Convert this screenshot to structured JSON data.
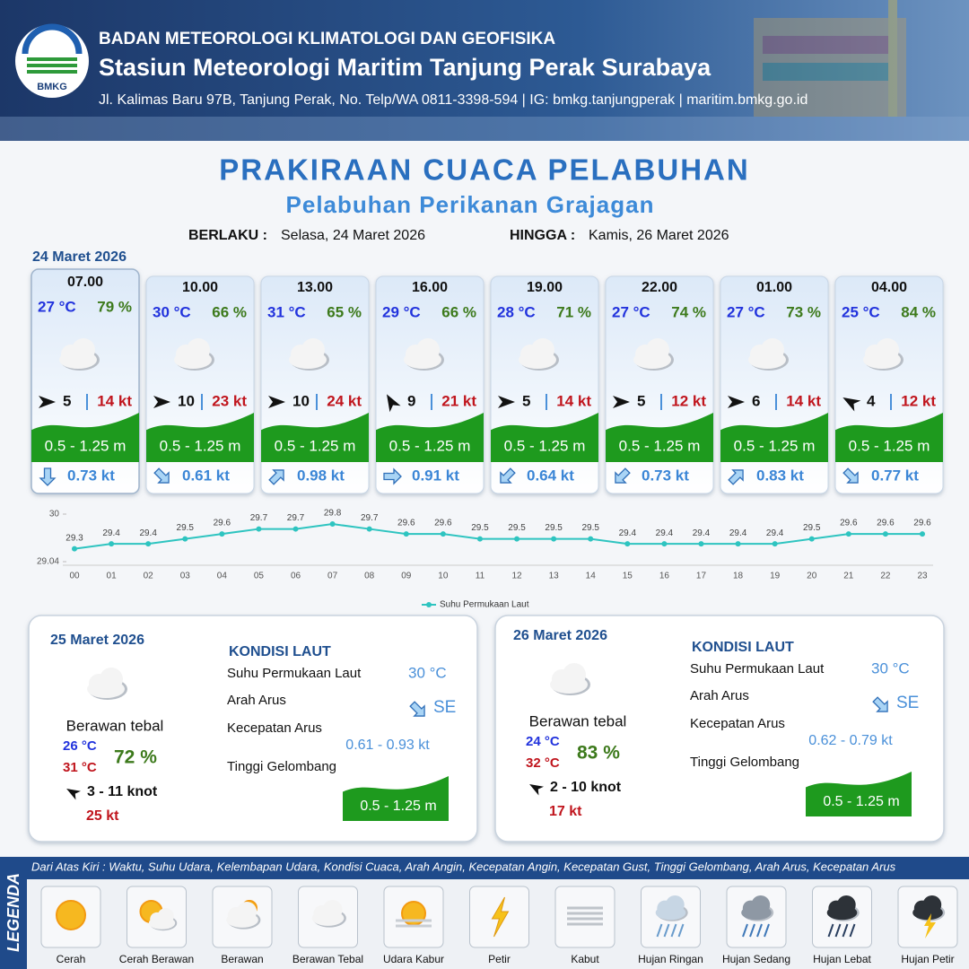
{
  "header": {
    "logo_text": "BMKG",
    "organization": "BADAN METEOROLOGI KLIMATOLOGI DAN GEOFISIKA",
    "station": "Stasiun Meteorologi Maritim Tanjung Perak Surabaya",
    "address": "Jl. Kalimas Baru 97B, Tanjung Perak, No. Telp/WA 0811-3398-594 | IG: bmkg.tanjungperak | maritim.bmkg.go.id"
  },
  "title": "PRAKIRAAN CUACA PELABUHAN",
  "subtitle": "Pelabuhan Perikanan Grajagan",
  "validity": {
    "from_label": "BERLAKU :",
    "from": "Selasa, 24 Maret 2026",
    "to_label": "HINGGA :",
    "to": "Kamis, 26 Maret 2026"
  },
  "day1_date": "24 Maret 2026",
  "forecasts": [
    {
      "time": "07.00",
      "temperature": "27 °C",
      "humidity": "79 %",
      "wind_arrow_rotation": 0,
      "wind_speed": "5",
      "gust": "14 kt",
      "wave": "0.5 - 1.25 m",
      "current_arrow_rotation": 90,
      "current_speed": "0.73 kt"
    },
    {
      "time": "10.00",
      "temperature": "30 °C",
      "humidity": "66 %",
      "wind_arrow_rotation": 0,
      "wind_speed": "10",
      "gust": "23 kt",
      "wave": "0.5 - 1.25 m",
      "current_arrow_rotation": 45,
      "current_speed": "0.61 kt"
    },
    {
      "time": "13.00",
      "temperature": "31 °C",
      "humidity": "65 %",
      "wind_arrow_rotation": 0,
      "wind_speed": "10",
      "gust": "24 kt",
      "wave": "0.5 - 1.25 m",
      "current_arrow_rotation": -45,
      "current_speed": "0.98 kt"
    },
    {
      "time": "16.00",
      "temperature": "29 °C",
      "humidity": "66 %",
      "wind_arrow_rotation": -120,
      "wind_speed": "9",
      "gust": "21 kt",
      "wave": "0.5 - 1.25 m",
      "current_arrow_rotation": 0,
      "current_speed": "0.91 kt"
    },
    {
      "time": "19.00",
      "temperature": "28 °C",
      "humidity": "71 %",
      "wind_arrow_rotation": 0,
      "wind_speed": "5",
      "gust": "14 kt",
      "wave": "0.5 - 1.25 m",
      "current_arrow_rotation": 135,
      "current_speed": "0.64 kt"
    },
    {
      "time": "22.00",
      "temperature": "27 °C",
      "humidity": "74 %",
      "wind_arrow_rotation": 0,
      "wind_speed": "5",
      "gust": "12 kt",
      "wave": "0.5 - 1.25 m",
      "current_arrow_rotation": 135,
      "current_speed": "0.73 kt"
    },
    {
      "time": "01.00",
      "temperature": "27 °C",
      "humidity": "73 %",
      "wind_arrow_rotation": 0,
      "wind_speed": "6",
      "gust": "14 kt",
      "wave": "0.5 - 1.25 m",
      "current_arrow_rotation": -45,
      "current_speed": "0.83 kt"
    },
    {
      "time": "04.00",
      "temperature": "25 °C",
      "humidity": "84 %",
      "wind_arrow_rotation": -150,
      "wind_speed": "4",
      "gust": "12 kt",
      "wave": "0.5 - 1.25 m",
      "current_arrow_rotation": 45,
      "current_speed": "0.77 kt"
    }
  ],
  "chart_data": {
    "type": "line",
    "x": [
      "00",
      "01",
      "02",
      "03",
      "04",
      "05",
      "06",
      "07",
      "08",
      "09",
      "10",
      "11",
      "12",
      "13",
      "14",
      "15",
      "16",
      "17",
      "18",
      "19",
      "20",
      "21",
      "22",
      "23"
    ],
    "series": [
      {
        "name": "Suhu Permukaan Laut",
        "color": "#2ec4c0",
        "values": [
          29.3,
          29.4,
          29.4,
          29.5,
          29.6,
          29.7,
          29.7,
          29.8,
          29.7,
          29.6,
          29.6,
          29.5,
          29.5,
          29.5,
          29.5,
          29.4,
          29.4,
          29.4,
          29.4,
          29.4,
          29.5,
          29.6,
          29.6,
          29.6
        ]
      }
    ],
    "ylim": [
      29.04,
      30
    ],
    "yticks": [
      29.04,
      30
    ],
    "legend": "bottom"
  },
  "days": [
    {
      "date": "25 Maret 2026",
      "condition": "Berawan tebal",
      "temp_min": "26 °C",
      "temp_max": "31 °C",
      "humidity": "72 %",
      "wind_arrow_rotation": -150,
      "wind": "3 - 11 knot",
      "gust": "25 kt",
      "sea_title": "KONDISI LAUT",
      "sst_label": "Suhu Permukaan Laut",
      "sst": "30 °C",
      "current_dir_label": "Arah Arus",
      "current_arrow_rotation": 45,
      "current_dir": "SE",
      "current_speed_label": "Kecepatan Arus",
      "current_speed": "0.61 - 0.93 kt",
      "wave_label": "Tinggi Gelombang",
      "wave": "0.5 - 1.25 m"
    },
    {
      "date": "26 Maret 2026",
      "condition": "Berawan tebal",
      "temp_min": "24 °C",
      "temp_max": "32 °C",
      "humidity": "83 %",
      "wind_arrow_rotation": -150,
      "wind": "2 - 10 knot",
      "gust": "17 kt",
      "sea_title": "KONDISI LAUT",
      "sst_label": "Suhu Permukaan Laut",
      "sst": "30 °C",
      "current_dir_label": "Arah Arus",
      "current_arrow_rotation": 45,
      "current_dir": "SE",
      "current_speed_label": "Kecepatan Arus",
      "current_speed": "0.62 - 0.79 kt",
      "wave_label": "Tinggi Gelombang",
      "wave": "0.5 - 1.25 m"
    }
  ],
  "legend": {
    "title": "LEGENDA",
    "description": "Dari Atas Kiri : Waktu, Suhu Udara, Kelembapan Udara, Kondisi Cuaca, Arah Angin, Kecepatan Angin, Kecepatan Gust, Tinggi Gelombang, Arah Arus, Kecepatan Arus",
    "items": [
      "Cerah",
      "Cerah Berawan",
      "Berawan",
      "Berawan Tebal",
      "Udara Kabur",
      "Petir",
      "Kabut",
      "Hujan Ringan",
      "Hujan Sedang",
      "Hujan Lebat",
      "Hujan Petir"
    ]
  }
}
